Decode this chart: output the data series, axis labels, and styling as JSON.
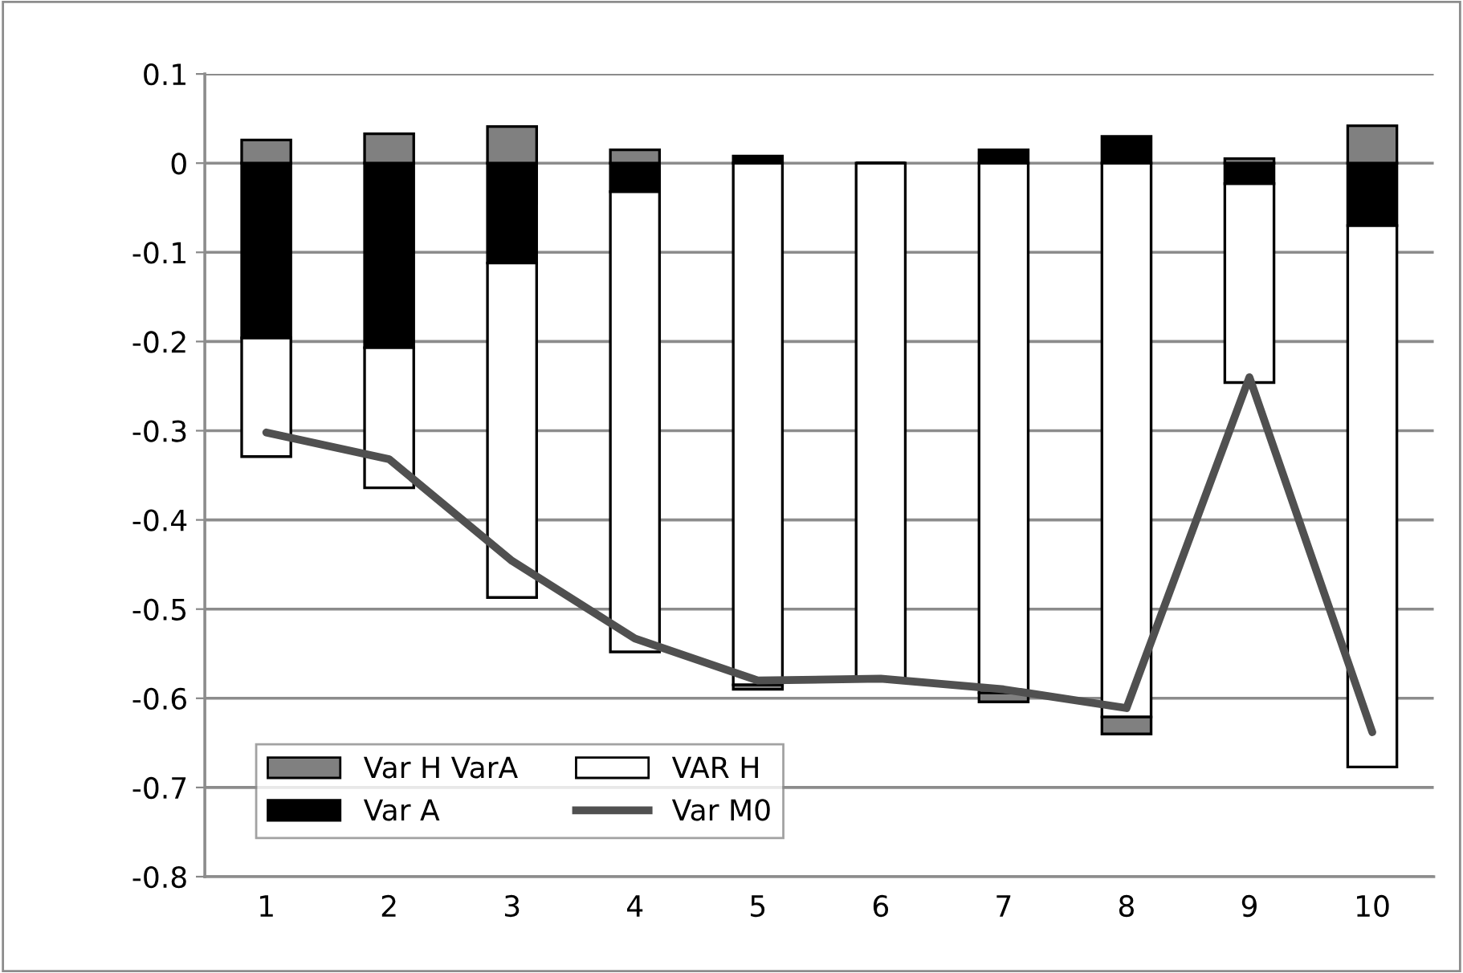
{
  "chart_data": {
    "type": "bar",
    "stacked": true,
    "categories": [
      "1",
      "2",
      "3",
      "4",
      "5",
      "6",
      "7",
      "8",
      "9",
      "10"
    ],
    "series": [
      {
        "name": "Var A",
        "color": "#000000",
        "values": [
          -0.196,
          -0.207,
          -0.112,
          -0.032,
          0.008,
          0,
          0.015,
          0.03,
          -0.023,
          -0.07
        ]
      },
      {
        "name": "VAR H",
        "color": "#ffffff",
        "values": [
          -0.133,
          -0.157,
          -0.375,
          -0.516,
          -0.585,
          -0.58,
          -0.594,
          -0.621,
          -0.223,
          -0.607
        ]
      },
      {
        "name": "Var H VarA",
        "color": "#808080",
        "values": [
          0.026,
          0.033,
          0.041,
          0.015,
          -0.005,
          0,
          -0.01,
          -0.019,
          0.005,
          0.042
        ]
      },
      {
        "name": "Var M0",
        "type": "line",
        "color": "#505050",
        "values": [
          -0.302,
          -0.332,
          -0.446,
          -0.533,
          -0.58,
          -0.578,
          -0.59,
          -0.611,
          -0.24,
          -0.638
        ]
      }
    ],
    "ylim": [
      -0.8,
      0.1
    ],
    "yticks": [
      0.1,
      0,
      -0.1,
      -0.2,
      -0.3,
      -0.4,
      -0.5,
      -0.6,
      -0.7,
      -0.8
    ],
    "grid": "y",
    "legend": "bottom left",
    "marker": "none",
    "line_style": "solid"
  }
}
